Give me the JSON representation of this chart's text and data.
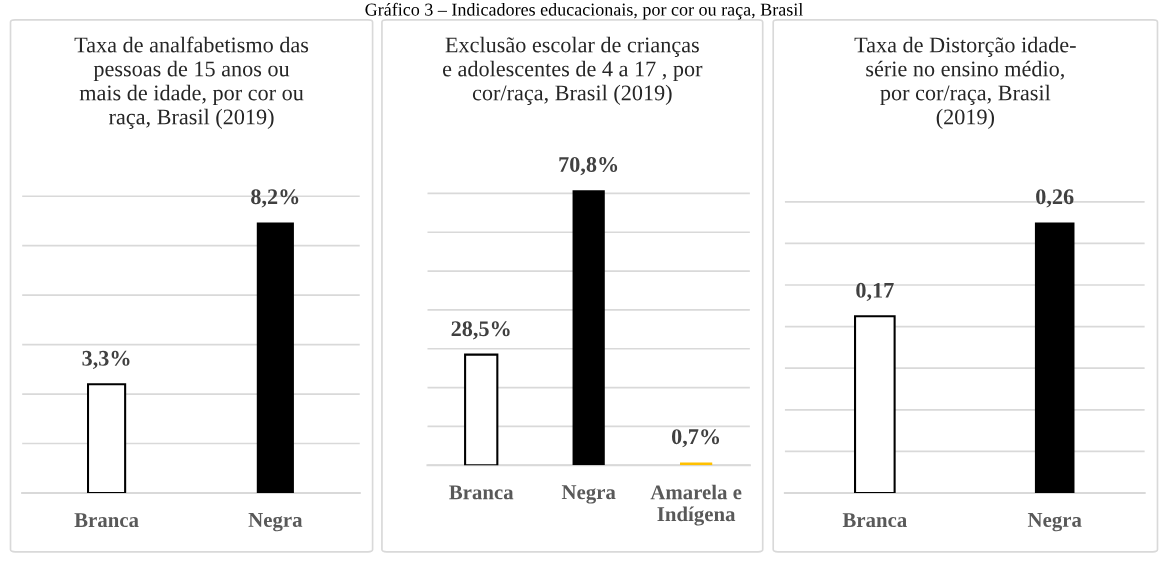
{
  "chart_data": [
    {
      "type": "bar",
      "title": "Taxa de analfabetismo das\npessoas de 15 anos ou\nmais de idade, por cor ou\nraça, Brasil (2019)",
      "annotations": [
        "Gráfico 3 – Indicadores educacionais, por cor ou raça, Brasil"
      ],
      "categories": [
        "Branca",
        "Negra"
      ],
      "values": [
        3.3,
        8.2
      ],
      "colors": [
        "#ffffff",
        "#000000"
      ],
      "value_labels": [
        "3,3%",
        "8,2%"
      ],
      "grid": "y",
      "tick_labels": "x"
    },
    {
      "type": "bar",
      "title": "Exclusão escolar de crianças\ne adolescentes de 4 a 17 , por\ncor/raça, Brasil (2019)",
      "categories": [
        "Branca",
        "Negra",
        "Amarela e\nIndígena"
      ],
      "values": [
        28.5,
        70.8,
        0.7
      ],
      "colors": [
        "#ffffff",
        "#000000",
        "#ffc000"
      ],
      "value_labels": [
        "28,5%",
        "70,8%",
        "0,7%"
      ],
      "grid": "y",
      "tick_labels": "x"
    },
    {
      "type": "bar",
      "title": "Taxa de Distorção idade-\nsérie no ensino médio,\npor cor/raça, Brasil\n(2019)",
      "categories": [
        "Branca",
        "Negra"
      ],
      "values": [
        0.17,
        0.26
      ],
      "colors": [
        "#ffffff",
        "#000000"
      ],
      "value_labels": [
        "0,17",
        "0,26"
      ],
      "grid": "y",
      "tick_labels": "x"
    }
  ]
}
